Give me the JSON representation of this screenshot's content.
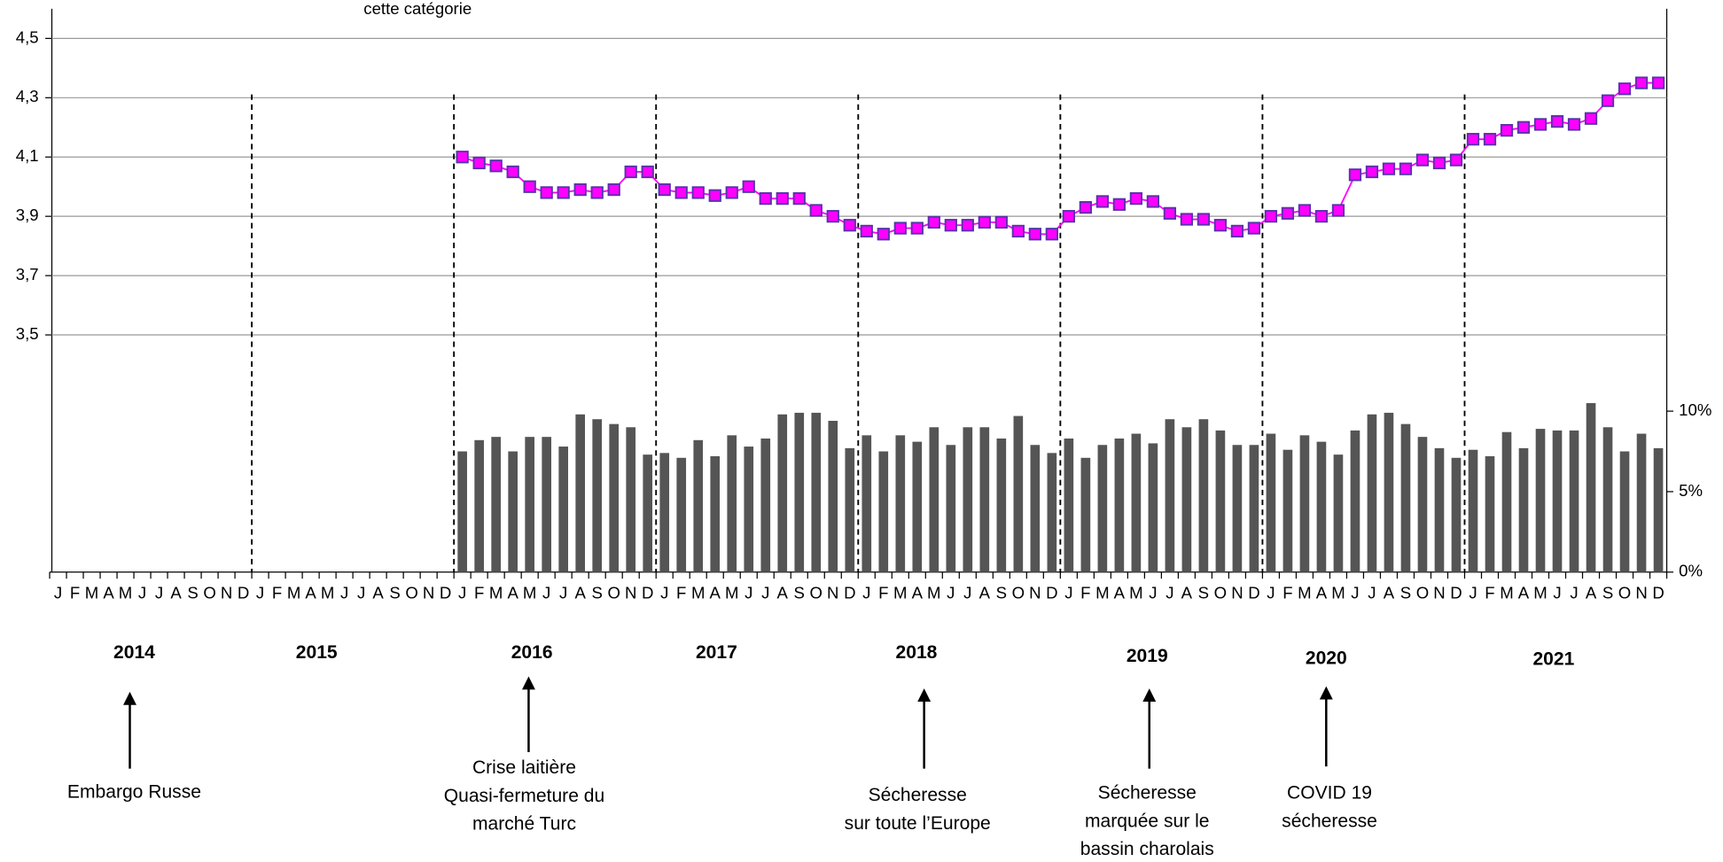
{
  "chart_data": {
    "type": "bar_line",
    "subtitle": "cette catégorie",
    "categories": [
      "J",
      "F",
      "M",
      "A",
      "M",
      "J",
      "J",
      "A",
      "S",
      "O",
      "N",
      "D",
      "J",
      "F",
      "M",
      "A",
      "M",
      "J",
      "J",
      "A",
      "S",
      "O",
      "N",
      "D",
      "J",
      "F",
      "M",
      "A",
      "M",
      "J",
      "J",
      "A",
      "S",
      "O",
      "N",
      "D",
      "J",
      "F",
      "M",
      "A",
      "M",
      "J",
      "J",
      "A",
      "S",
      "O",
      "N",
      "D",
      "J",
      "F",
      "M",
      "A",
      "M",
      "J",
      "J",
      "A",
      "S",
      "O",
      "N",
      "D",
      "J",
      "F",
      "M",
      "A",
      "M",
      "J",
      "J",
      "A",
      "S",
      "O",
      "N",
      "D",
      "J",
      "F",
      "M",
      "A",
      "M",
      "J",
      "J",
      "A",
      "S",
      "O",
      "N",
      "D",
      "J",
      "F",
      "M",
      "A",
      "M",
      "J",
      "J",
      "A",
      "S",
      "O",
      "N",
      "D"
    ],
    "years": [
      "2014",
      "2015",
      "2016",
      "2017",
      "2018",
      "2019",
      "2020",
      "2021"
    ],
    "series": [
      {
        "type": "line",
        "color": "#ff00ff",
        "values": [
          null,
          null,
          null,
          null,
          null,
          null,
          null,
          null,
          null,
          null,
          null,
          null,
          null,
          null,
          null,
          null,
          null,
          null,
          null,
          null,
          null,
          null,
          null,
          null,
          4.1,
          4.08,
          4.07,
          4.05,
          4.0,
          3.98,
          3.98,
          3.99,
          3.98,
          3.99,
          4.05,
          4.05,
          3.99,
          3.98,
          3.98,
          3.97,
          3.98,
          4.0,
          3.96,
          3.96,
          3.96,
          3.92,
          3.9,
          3.87,
          3.85,
          3.84,
          3.86,
          3.86,
          3.88,
          3.87,
          3.87,
          3.88,
          3.88,
          3.85,
          3.84,
          3.84,
          3.9,
          3.93,
          3.95,
          3.94,
          3.96,
          3.95,
          3.91,
          3.89,
          3.89,
          3.87,
          3.85,
          3.86,
          3.9,
          3.91,
          3.92,
          3.9,
          3.92,
          4.04,
          4.05,
          4.06,
          4.06,
          4.09,
          4.08,
          4.09,
          4.16,
          4.16,
          4.19,
          4.2,
          4.21,
          4.22,
          4.21,
          4.23,
          4.29,
          4.33,
          4.35,
          4.35
        ]
      },
      {
        "type": "bar",
        "axis": "y2",
        "color": "#555555",
        "values": [
          null,
          null,
          null,
          null,
          null,
          null,
          null,
          null,
          null,
          null,
          null,
          null,
          null,
          null,
          null,
          null,
          null,
          null,
          null,
          null,
          null,
          null,
          null,
          null,
          7.5,
          8.2,
          8.4,
          7.5,
          8.4,
          8.4,
          7.8,
          9.8,
          9.5,
          9.2,
          9.0,
          7.3,
          7.4,
          7.1,
          8.2,
          7.2,
          8.5,
          7.8,
          8.3,
          9.8,
          9.9,
          9.9,
          9.4,
          7.7,
          8.5,
          7.5,
          8.5,
          8.1,
          9.0,
          7.9,
          9.0,
          9.0,
          8.3,
          9.7,
          7.9,
          7.4,
          8.3,
          7.1,
          7.9,
          8.3,
          8.6,
          8.0,
          9.5,
          9.0,
          9.5,
          8.8,
          7.9,
          7.9,
          8.6,
          7.6,
          8.5,
          8.1,
          7.3,
          8.8,
          9.8,
          9.9,
          9.2,
          8.4,
          7.7,
          7.1,
          7.6,
          7.2,
          8.7,
          7.7,
          8.9,
          8.8,
          8.8,
          10.5,
          9.0,
          7.5,
          8.6,
          7.7
        ]
      }
    ],
    "ylim": [
      2.7,
      4.6
    ],
    "yticks": [
      {
        "value": 3.5,
        "label": "3,5"
      },
      {
        "value": 3.7,
        "label": "3,7"
      },
      {
        "value": 3.9,
        "label": "3,9"
      },
      {
        "value": 4.1,
        "label": "4,1"
      },
      {
        "value": 4.3,
        "label": "4,3"
      },
      {
        "value": 4.5,
        "label": "4,5"
      }
    ],
    "y2lim": [
      0,
      35
    ],
    "y2ticks": [
      {
        "value": 0,
        "label": "0%"
      },
      {
        "value": 5,
        "label": "5%"
      },
      {
        "value": 10,
        "label": "10%"
      }
    ],
    "grid": true,
    "annotations": [
      {
        "lines": [
          "Embargo Russe"
        ]
      },
      {
        "lines": [
          "Crise laitière",
          "Quasi-fermeture du",
          "marché Turc"
        ]
      },
      {
        "lines": [
          "Sécheresse",
          "sur toute l’Europe"
        ]
      },
      {
        "lines": [
          "Sécheresse",
          "marquée sur le",
          "bassin charolais"
        ]
      },
      {
        "lines": [
          "COVID 19",
          "sécheresse"
        ]
      }
    ]
  }
}
